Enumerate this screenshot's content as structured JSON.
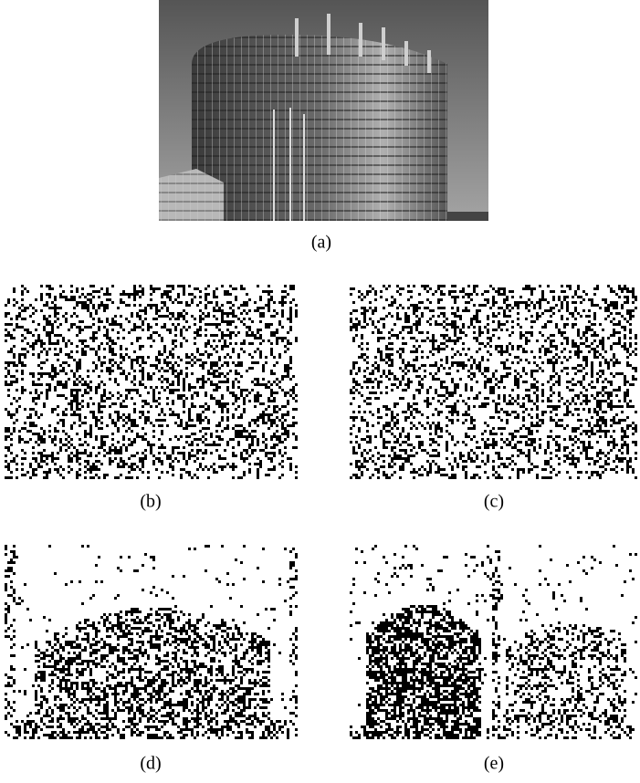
{
  "figure": {
    "panels": [
      {
        "label": "(a)"
      },
      {
        "label": "(b)"
      },
      {
        "label": "(c)"
      },
      {
        "label": "(d)"
      },
      {
        "label": "(e)"
      }
    ]
  }
}
